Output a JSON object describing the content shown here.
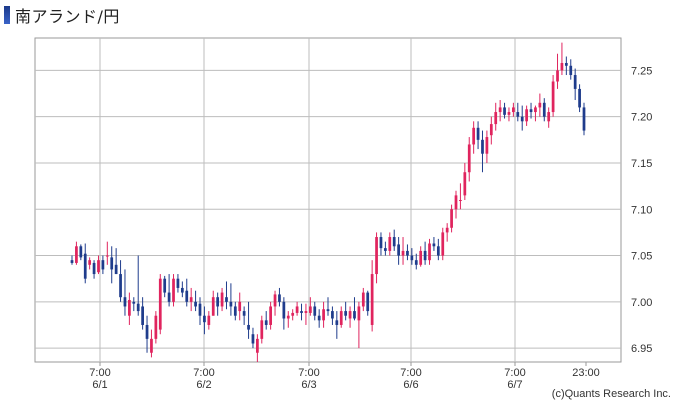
{
  "title": "南アランド/円",
  "copyright": "(c)Quants Research Inc.",
  "colors": {
    "up": "#e0245e",
    "down": "#1f3c8c",
    "grid": "#bdbdbd",
    "frame": "#9a9a9a"
  },
  "chart_data": {
    "type": "candlestick",
    "title": "南アランド/円",
    "xlabel": "",
    "ylabel": "",
    "ylim": [
      6.935,
      7.285
    ],
    "y_ticks": [
      "7.25",
      "7.20",
      "7.15",
      "7.10",
      "7.05",
      "7.00",
      "6.95"
    ],
    "x_ticks": [
      {
        "time": "7:00",
        "date": "6/1"
      },
      {
        "time": "7:00",
        "date": "6/2"
      },
      {
        "time": "7:00",
        "date": "6/3"
      },
      {
        "time": "7:00",
        "date": "6/6"
      },
      {
        "time": "7:00",
        "date": "6/7"
      },
      {
        "time": "23:00",
        "date": ""
      }
    ],
    "grid": true,
    "candles": [
      [
        7.045,
        7.05,
        7.04,
        7.042
      ],
      [
        7.042,
        7.065,
        7.04,
        7.06
      ],
      [
        7.06,
        7.062,
        7.045,
        7.048
      ],
      [
        7.052,
        7.063,
        7.02,
        7.025
      ],
      [
        7.04,
        7.048,
        7.035,
        7.045
      ],
      [
        7.042,
        7.045,
        7.025,
        7.03
      ],
      [
        7.032,
        7.05,
        7.03,
        7.045
      ],
      [
        7.045,
        7.05,
        7.03,
        7.035
      ],
      [
        7.05,
        7.065,
        7.04,
        7.05
      ],
      [
        7.048,
        7.06,
        7.02,
        7.035
      ],
      [
        7.04,
        7.058,
        7.03,
        7.03
      ],
      [
        7.03,
        7.045,
        7.0,
        7.005
      ],
      [
        7.005,
        7.035,
        6.985,
        6.995
      ],
      [
        6.985,
        7.01,
        6.975,
        7.002
      ],
      [
        7.0,
        7.005,
        6.99,
        6.998
      ],
      [
        6.998,
        7.05,
        6.985,
        6.99
      ],
      [
        6.995,
        7.005,
        6.97,
        6.975
      ],
      [
        6.975,
        6.985,
        6.945,
        6.96
      ],
      [
        6.945,
        6.97,
        6.94,
        6.96
      ],
      [
        6.96,
        6.99,
        6.955,
        6.985
      ],
      [
        6.97,
        7.03,
        6.965,
        7.025
      ],
      [
        7.025,
        7.028,
        7.005,
        7.01
      ],
      [
        7.01,
        7.03,
        6.995,
        7.0
      ],
      [
        7.0,
        7.03,
        6.995,
        7.025
      ],
      [
        7.025,
        7.03,
        7.01,
        7.015
      ],
      [
        7.015,
        7.022,
        7.005,
        7.01
      ],
      [
        7.012,
        7.025,
        6.995,
        7.0
      ],
      [
        7.0,
        7.015,
        6.99,
        7.005
      ],
      [
        7.0,
        7.012,
        6.99,
        6.995
      ],
      [
        6.998,
        7.005,
        6.975,
        6.985
      ],
      [
        6.985,
        6.995,
        6.965,
        6.978
      ],
      [
        6.975,
        6.99,
        6.97,
        6.985
      ],
      [
        6.985,
        7.012,
        6.985,
        7.005
      ],
      [
        7.005,
        7.01,
        6.985,
        6.995
      ],
      [
        6.995,
        7.015,
        6.99,
        7.01
      ],
      [
        7.005,
        7.022,
        6.992,
        7.0
      ],
      [
        7.0,
        7.02,
        6.985,
        6.995
      ],
      [
        6.995,
        7.0,
        6.98,
        6.985
      ],
      [
        6.99,
        7.01,
        6.98,
        7.0
      ],
      [
        6.99,
        6.995,
        6.975,
        6.985
      ],
      [
        6.975,
        7.0,
        6.96,
        6.97
      ],
      [
        6.965,
        6.972,
        6.95,
        6.955
      ],
      [
        6.945,
        6.965,
        6.935,
        6.96
      ],
      [
        6.96,
        6.985,
        6.955,
        6.98
      ],
      [
        6.98,
        6.99,
        6.97,
        6.975
      ],
      [
        6.975,
        7.0,
        6.97,
        6.995
      ],
      [
        6.995,
        7.012,
        6.985,
        7.008
      ],
      [
        7.008,
        7.015,
        6.995,
        7.0
      ],
      [
        7.0,
        7.005,
        6.97,
        6.982
      ],
      [
        6.982,
        6.99,
        6.972,
        6.985
      ],
      [
        6.985,
        6.992,
        6.98,
        6.988
      ],
      [
        6.988,
        7.0,
        6.985,
        6.995
      ],
      [
        6.99,
        6.998,
        6.98,
        6.988
      ],
      [
        6.988,
        6.998,
        6.975,
        6.99
      ],
      [
        6.988,
        7.005,
        6.985,
        6.995
      ],
      [
        6.995,
        7.0,
        6.98,
        6.985
      ],
      [
        6.985,
        6.992,
        6.972,
        6.98
      ],
      [
        6.98,
        7.0,
        6.972,
        6.992
      ],
      [
        6.992,
        7.005,
        6.985,
        6.99
      ],
      [
        6.99,
        6.995,
        6.975,
        6.982
      ],
      [
        6.98,
        6.99,
        6.96,
        6.975
      ],
      [
        6.975,
        6.995,
        6.972,
        6.99
      ],
      [
        6.99,
        7.0,
        6.98,
        6.985
      ],
      [
        6.982,
        6.995,
        6.972,
        6.99
      ],
      [
        6.99,
        7.005,
        6.98,
        6.982
      ],
      [
        6.98,
        7.0,
        6.95,
        6.995
      ],
      [
        6.995,
        7.015,
        6.99,
        7.01
      ],
      [
        7.01,
        7.012,
        6.985,
        6.99
      ],
      [
        6.975,
        7.045,
        6.968,
        7.03
      ],
      [
        7.03,
        7.075,
        7.02,
        7.07
      ],
      [
        7.07,
        7.075,
        7.05,
        7.058
      ],
      [
        7.058,
        7.065,
        7.05,
        7.055
      ],
      [
        7.055,
        7.075,
        7.05,
        7.07
      ],
      [
        7.07,
        7.078,
        7.055,
        7.06
      ],
      [
        7.062,
        7.07,
        7.04,
        7.05
      ],
      [
        7.05,
        7.07,
        7.04,
        7.055
      ],
      [
        7.055,
        7.062,
        7.045,
        7.05
      ],
      [
        7.05,
        7.058,
        7.04,
        7.045
      ],
      [
        7.045,
        7.052,
        7.035,
        7.04
      ],
      [
        7.04,
        7.06,
        7.038,
        7.055
      ],
      [
        7.055,
        7.065,
        7.04,
        7.045
      ],
      [
        7.045,
        7.068,
        7.04,
        7.063
      ],
      [
        7.063,
        7.07,
        7.055,
        7.06
      ],
      [
        7.06,
        7.068,
        7.045,
        7.05
      ],
      [
        7.05,
        7.08,
        7.045,
        7.075
      ],
      [
        7.075,
        7.085,
        7.065,
        7.08
      ],
      [
        7.08,
        7.105,
        7.075,
        7.1
      ],
      [
        7.1,
        7.12,
        7.09,
        7.115
      ],
      [
        7.11,
        7.128,
        7.1,
        7.11
      ],
      [
        7.115,
        7.15,
        7.11,
        7.14
      ],
      [
        7.14,
        7.178,
        7.13,
        7.17
      ],
      [
        7.17,
        7.195,
        7.16,
        7.188
      ],
      [
        7.188,
        7.195,
        7.165,
        7.175
      ],
      [
        7.175,
        7.185,
        7.14,
        7.16
      ],
      [
        7.16,
        7.185,
        7.15,
        7.178
      ],
      [
        7.18,
        7.2,
        7.17,
        7.192
      ],
      [
        7.192,
        7.215,
        7.185,
        7.205
      ],
      [
        7.205,
        7.218,
        7.195,
        7.21
      ],
      [
        7.21,
        7.215,
        7.198,
        7.202
      ],
      [
        7.202,
        7.21,
        7.195,
        7.205
      ],
      [
        7.205,
        7.215,
        7.2,
        7.21
      ],
      [
        7.205,
        7.215,
        7.195,
        7.2
      ],
      [
        7.2,
        7.212,
        7.185,
        7.195
      ],
      [
        7.195,
        7.212,
        7.19,
        7.208
      ],
      [
        7.208,
        7.215,
        7.198,
        7.205
      ],
      [
        7.205,
        7.212,
        7.195,
        7.21
      ],
      [
        7.21,
        7.225,
        7.2,
        7.215
      ],
      [
        7.215,
        7.22,
        7.195,
        7.2
      ],
      [
        7.195,
        7.21,
        7.188,
        7.205
      ],
      [
        7.205,
        7.245,
        7.2,
        7.238
      ],
      [
        7.238,
        7.268,
        7.23,
        7.25
      ],
      [
        7.25,
        7.28,
        7.245,
        7.258
      ],
      [
        7.258,
        7.265,
        7.245,
        7.255
      ],
      [
        7.255,
        7.262,
        7.24,
        7.245
      ],
      [
        7.245,
        7.252,
        7.218,
        7.23
      ],
      [
        7.23,
        7.235,
        7.205,
        7.21
      ],
      [
        7.21,
        7.215,
        7.18,
        7.185
      ]
    ]
  }
}
